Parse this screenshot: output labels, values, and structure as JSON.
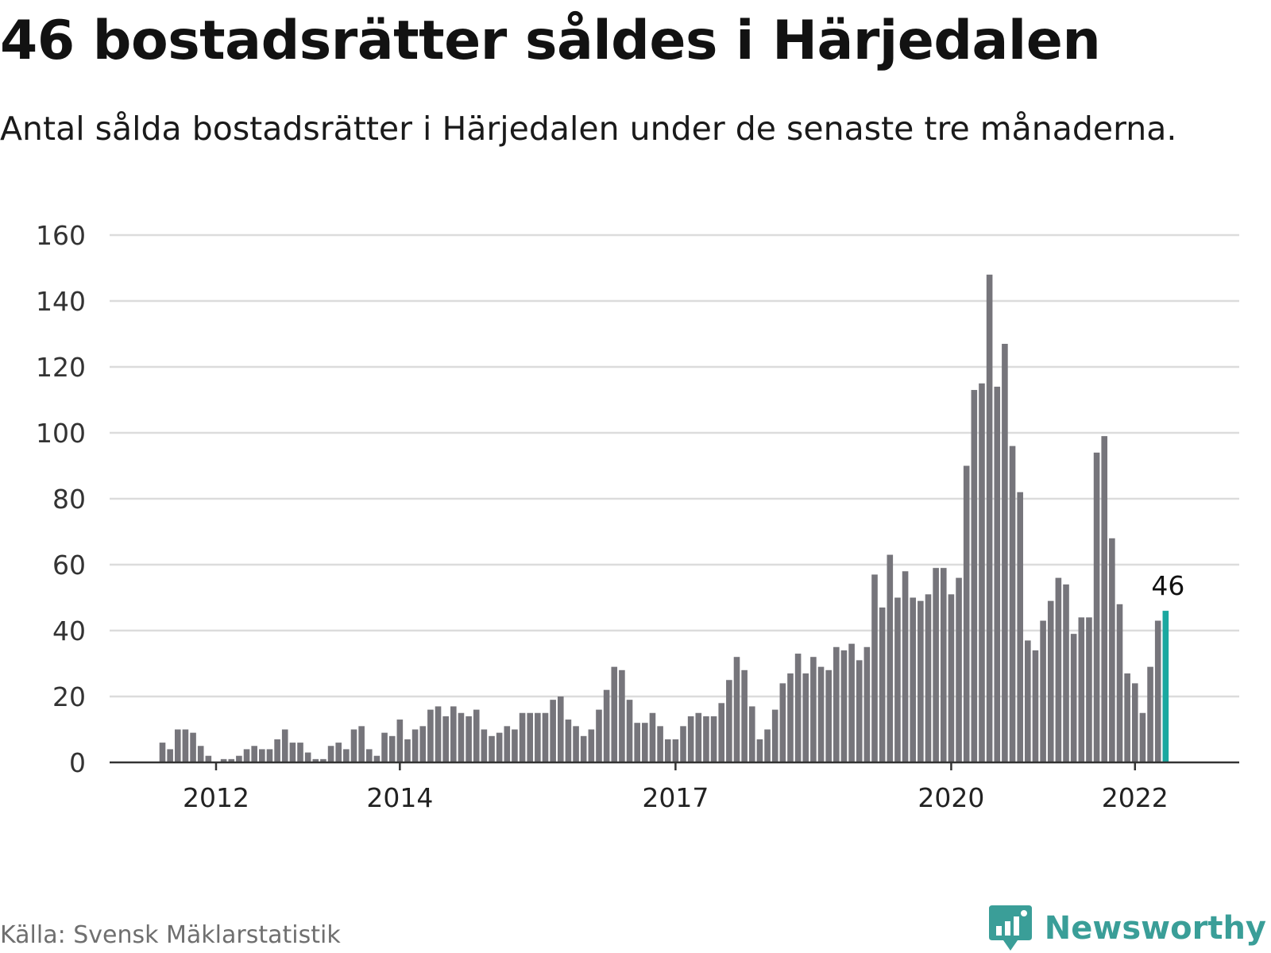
{
  "header": {
    "title": "46 bostadsrätter såldes i Härjedalen",
    "subtitle": "Antal sålda bostadsrätter i Härjedalen under de senaste tre månaderna."
  },
  "footer": {
    "source": "Källa: Svensk Mäklarstatistik",
    "brand": "Newsworthy",
    "brand_icon": "bar-chart-speech-bubble-icon"
  },
  "colors": {
    "bar": "#76757b",
    "highlight": "#1ba8a0",
    "grid": "#dcdcdc",
    "axis": "#333333",
    "brand": "#3a9e98"
  },
  "chart_data": {
    "type": "bar",
    "x_unit": "month",
    "first_month": "2011-06",
    "ylim": [
      0,
      160
    ],
    "yticks": [
      0,
      20,
      40,
      60,
      80,
      100,
      120,
      140,
      160
    ],
    "xticks": [
      {
        "label": "2012",
        "month": "2012-01"
      },
      {
        "label": "2014",
        "month": "2014-01"
      },
      {
        "label": "2017",
        "month": "2017-01"
      },
      {
        "label": "2020",
        "month": "2020-01"
      },
      {
        "label": "2022",
        "month": "2022-01"
      }
    ],
    "values": [
      6,
      4,
      10,
      10,
      9,
      5,
      2,
      0,
      1,
      1,
      2,
      4,
      5,
      4,
      4,
      7,
      10,
      6,
      6,
      3,
      1,
      1,
      5,
      6,
      4,
      10,
      11,
      4,
      2,
      9,
      8,
      13,
      7,
      10,
      11,
      16,
      17,
      14,
      17,
      15,
      14,
      16,
      10,
      8,
      9,
      11,
      10,
      15,
      15,
      15,
      15,
      19,
      20,
      13,
      11,
      8,
      10,
      16,
      22,
      29,
      28,
      19,
      12,
      12,
      15,
      11,
      7,
      7,
      11,
      14,
      15,
      14,
      14,
      18,
      25,
      32,
      28,
      17,
      7,
      10,
      16,
      24,
      27,
      33,
      27,
      32,
      29,
      28,
      35,
      34,
      36,
      31,
      35,
      57,
      47,
      63,
      50,
      58,
      50,
      49,
      51,
      59,
      59,
      51,
      56,
      90,
      113,
      115,
      148,
      114,
      127,
      96,
      82,
      37,
      34,
      43,
      49,
      56,
      54,
      39,
      44,
      44,
      94,
      99,
      68,
      48,
      27,
      24,
      15,
      29,
      43,
      46
    ],
    "highlight_index": 131,
    "highlight_label": "46"
  }
}
